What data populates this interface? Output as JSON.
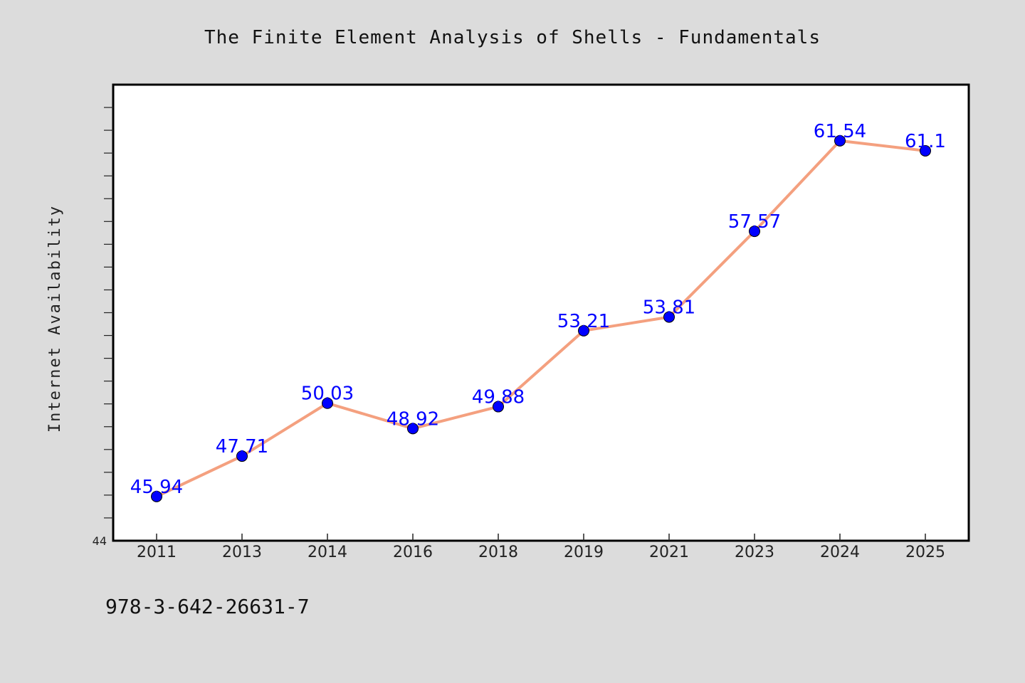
{
  "colors": {
    "background": "#dcdcdc",
    "plot_bg": "#ffffff",
    "line": "#f4a07f",
    "marker": "#0000ff",
    "data_label": "#0000ff"
  },
  "footer": {
    "isbn": "978-3-642-26631-7"
  },
  "chart_data": {
    "type": "line",
    "title": "The Finite Element Analysis of Shells - Fundamentals",
    "xlabel": "",
    "ylabel": "Internet Availability",
    "categories": [
      "2011",
      "2013",
      "2014",
      "2016",
      "2018",
      "2019",
      "2021",
      "2023",
      "2024",
      "2025"
    ],
    "series": [
      {
        "values": [
          45.94,
          47.71,
          50.03,
          48.92,
          49.88,
          53.21,
          53.81,
          57.57,
          61.54,
          61.1
        ],
        "data_labels": [
          "45.94",
          "47.71",
          "50.03",
          "48.92",
          "49.88",
          "53.21",
          "53.81",
          "57.57",
          "61.54",
          "61.1"
        ]
      }
    ],
    "ylim": [
      44,
      64
    ],
    "ytick_labels": [
      "44"
    ],
    "grid": false,
    "legend": "none",
    "markers": "filled-circle"
  }
}
